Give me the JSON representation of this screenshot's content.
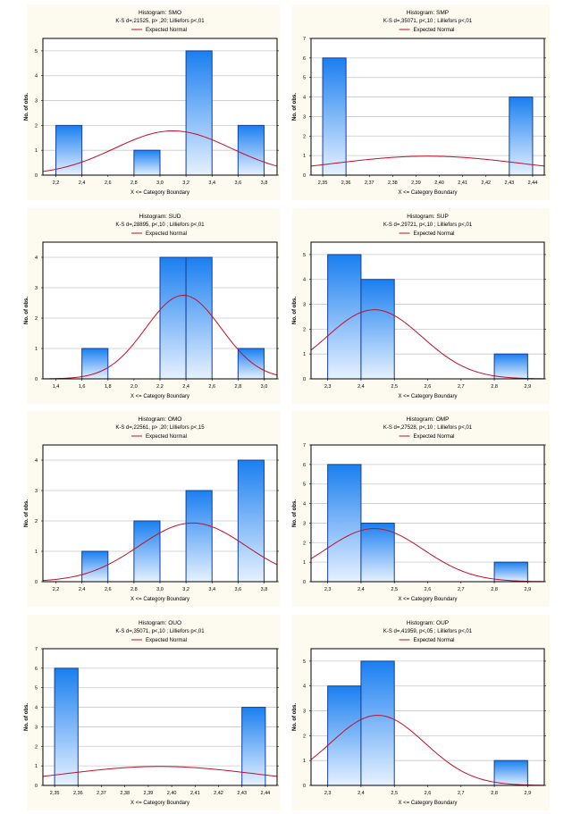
{
  "colors": {
    "panel": "#fdfaf0",
    "bar_top": "#1a7ff0",
    "bar_bottom": "#e6f1ff",
    "bar_stroke": "#123f9e",
    "curve": "#c0102a",
    "grid": "#c8c8c8"
  },
  "chart_data": [
    {
      "type": "bar",
      "title": "Histogram: SMO",
      "subtitle": "K-S d=,21525, p> ,20; Lilliefors p<,01",
      "legend": "Expected Normal",
      "xlabel": "X <= Category Boundary",
      "ylabel": "No. of obs.",
      "xlim": [
        2.1,
        3.9
      ],
      "ylim": [
        0,
        5.5
      ],
      "xticks": [
        2.2,
        2.4,
        2.6,
        2.8,
        3.0,
        3.2,
        3.4,
        3.6,
        3.8
      ],
      "xtick_labels": [
        "2,2",
        "2,4",
        "2,6",
        "2,8",
        "3,0",
        "3,2",
        "3,4",
        "3,6",
        "3,8"
      ],
      "yticks": [
        "0",
        "1",
        "2",
        "3",
        "4",
        "5"
      ],
      "bins": [
        {
          "from": 2.2,
          "to": 2.4,
          "count": 2
        },
        {
          "from": 2.8,
          "to": 3.0,
          "count": 1
        },
        {
          "from": 3.2,
          "to": 3.4,
          "count": 5
        },
        {
          "from": 3.6,
          "to": 3.8,
          "count": 2
        }
      ],
      "normal": {
        "mean": 3.1,
        "sd": 0.448,
        "n": 10,
        "bin_width": 0.2
      }
    },
    {
      "type": "bar",
      "title": "Histogram: SMP",
      "subtitle": "K-S d=,35071, p<,10 ; Lilliefors p<,01",
      "legend": "Expected Normal",
      "xlabel": "X <= Category Boundary",
      "ylabel": "No. of obs.",
      "xlim": [
        2.345,
        2.445
      ],
      "ylim": [
        0,
        7
      ],
      "xticks": [
        2.35,
        2.36,
        2.37,
        2.38,
        2.39,
        2.4,
        2.41,
        2.42,
        2.43,
        2.44
      ],
      "xtick_labels": [
        "2,35",
        "2,36",
        "2,37",
        "2,38",
        "2,39",
        "2,40",
        "2,41",
        "2,42",
        "2,43",
        "2,44"
      ],
      "yticks": [
        "0",
        "1",
        "2",
        "3",
        "4",
        "5",
        "6",
        "7"
      ],
      "bins": [
        {
          "from": 2.35,
          "to": 2.36,
          "count": 6
        },
        {
          "from": 2.43,
          "to": 2.44,
          "count": 4
        }
      ],
      "normal": {
        "mean": 2.395,
        "sd": 0.0411,
        "n": 10,
        "bin_width": 0.01
      }
    },
    {
      "type": "bar",
      "title": "Histogram: SUD",
      "subtitle": "K-S d=,28895, p<,10 ; Lilliefors p<,01",
      "legend": "Expected Normal",
      "xlabel": "X <= Category Boundary",
      "ylabel": "No. of obs.",
      "xlim": [
        1.3,
        3.1
      ],
      "ylim": [
        0,
        4.5
      ],
      "xticks": [
        1.4,
        1.6,
        1.8,
        2.0,
        2.2,
        2.4,
        2.6,
        2.8,
        3.0
      ],
      "xtick_labels": [
        "1,4",
        "1,6",
        "1,8",
        "2,0",
        "2,2",
        "2,4",
        "2,6",
        "2,8",
        "3,0"
      ],
      "yticks": [
        "0",
        "1",
        "2",
        "3",
        "4"
      ],
      "bins": [
        {
          "from": 1.6,
          "to": 1.8,
          "count": 1
        },
        {
          "from": 2.2,
          "to": 2.4,
          "count": 4
        },
        {
          "from": 2.4,
          "to": 2.6,
          "count": 4
        },
        {
          "from": 2.8,
          "to": 3.0,
          "count": 1
        }
      ],
      "normal": {
        "mean": 2.38,
        "sd": 0.29,
        "n": 10,
        "bin_width": 0.2
      }
    },
    {
      "type": "bar",
      "title": "Histogram: SUP",
      "subtitle": "K-S d=,29721, p<,10 ; Lilliefors p<,01",
      "legend": "Expected Normal",
      "xlabel": "X <= Category Boundary",
      "ylabel": "No. of obs.",
      "xlim": [
        2.25,
        2.95
      ],
      "ylim": [
        0,
        5.5
      ],
      "xticks": [
        2.3,
        2.4,
        2.5,
        2.6,
        2.7,
        2.8,
        2.9
      ],
      "xtick_labels": [
        "2,3",
        "2,4",
        "2,5",
        "2,6",
        "2,7",
        "2,8",
        "2,9"
      ],
      "yticks": [
        "0",
        "1",
        "2",
        "3",
        "4",
        "5"
      ],
      "bins": [
        {
          "from": 2.3,
          "to": 2.4,
          "count": 5
        },
        {
          "from": 2.4,
          "to": 2.5,
          "count": 4
        },
        {
          "from": 2.8,
          "to": 2.9,
          "count": 1
        }
      ],
      "normal": {
        "mean": 2.44,
        "sd": 0.1435,
        "n": 10,
        "bin_width": 0.1
      }
    },
    {
      "type": "bar",
      "title": "Histogram: OMO",
      "subtitle": "K-S d=,22561, p> ,20; Lilliefors p<,15",
      "legend": "Expected Normal",
      "xlabel": "X <= Category Boundary",
      "ylabel": "No. of obs.",
      "xlim": [
        2.1,
        3.9
      ],
      "ylim": [
        0,
        4.5
      ],
      "xticks": [
        2.2,
        2.4,
        2.6,
        2.8,
        3.0,
        3.2,
        3.4,
        3.6,
        3.8
      ],
      "xtick_labels": [
        "2,2",
        "2,4",
        "2,6",
        "2,8",
        "3,0",
        "3,2",
        "3,4",
        "3,6",
        "3,8"
      ],
      "yticks": [
        "0",
        "1",
        "2",
        "3",
        "4"
      ],
      "bins": [
        {
          "from": 2.4,
          "to": 2.6,
          "count": 1
        },
        {
          "from": 2.8,
          "to": 3.0,
          "count": 2
        },
        {
          "from": 3.2,
          "to": 3.4,
          "count": 3
        },
        {
          "from": 3.6,
          "to": 3.8,
          "count": 4
        }
      ],
      "normal": {
        "mean": 3.25,
        "sd": 0.413,
        "n": 10,
        "bin_width": 0.2
      }
    },
    {
      "type": "bar",
      "title": "Histogram: OMP",
      "subtitle": "K-S d=,27528, p<,10 ; Lilliefors p<,01",
      "legend": "Expected Normal",
      "xlabel": "X <= Category Boundary",
      "ylabel": "No. of obs.",
      "xlim": [
        2.25,
        2.95
      ],
      "ylim": [
        0,
        7
      ],
      "xticks": [
        2.3,
        2.4,
        2.5,
        2.6,
        2.7,
        2.8,
        2.9
      ],
      "xtick_labels": [
        "2,3",
        "2,4",
        "2,5",
        "2,6",
        "2,7",
        "2,8",
        "2,9"
      ],
      "yticks": [
        "0",
        "1",
        "2",
        "3",
        "4",
        "5",
        "6",
        "7"
      ],
      "bins": [
        {
          "from": 2.3,
          "to": 2.4,
          "count": 6
        },
        {
          "from": 2.4,
          "to": 2.5,
          "count": 3
        },
        {
          "from": 2.8,
          "to": 2.9,
          "count": 1
        }
      ],
      "normal": {
        "mean": 2.44,
        "sd": 0.1467,
        "n": 10,
        "bin_width": 0.1
      }
    },
    {
      "type": "bar",
      "title": "Histogram: OUO",
      "subtitle": "K-S d=,35071, p<,10 ; Lilliefors p<,01",
      "legend": "Expected Normal",
      "xlabel": "X <= Category Boundary",
      "ylabel": "No. of obs.",
      "xlim": [
        2.345,
        2.445
      ],
      "ylim": [
        0,
        7
      ],
      "xticks": [
        2.35,
        2.36,
        2.37,
        2.38,
        2.39,
        2.4,
        2.41,
        2.42,
        2.43,
        2.44
      ],
      "xtick_labels": [
        "2,35",
        "2,36",
        "2,37",
        "2,38",
        "2,39",
        "2,40",
        "2,41",
        "2,42",
        "2,43",
        "2,44"
      ],
      "yticks": [
        "0",
        "1",
        "2",
        "3",
        "4",
        "5",
        "6",
        "7"
      ],
      "bins": [
        {
          "from": 2.35,
          "to": 2.36,
          "count": 6
        },
        {
          "from": 2.43,
          "to": 2.44,
          "count": 4
        }
      ],
      "normal": {
        "mean": 2.395,
        "sd": 0.0411,
        "n": 10,
        "bin_width": 0.01
      }
    },
    {
      "type": "bar",
      "title": "Histogram: OUP",
      "subtitle": "K-S d=,41959, p<,05 ; Lilliefors p<,01",
      "legend": "Expected Normal",
      "xlabel": "X <= Category Boundary",
      "ylabel": "No. of obs.",
      "xlim": [
        2.25,
        2.95
      ],
      "ylim": [
        0,
        5.5
      ],
      "xticks": [
        2.3,
        2.4,
        2.5,
        2.6,
        2.7,
        2.8,
        2.9
      ],
      "xtick_labels": [
        "2,3",
        "2,4",
        "2,5",
        "2,6",
        "2,7",
        "2,8",
        "2,9"
      ],
      "yticks": [
        "0",
        "1",
        "2",
        "3",
        "4",
        "5"
      ],
      "bins": [
        {
          "from": 2.3,
          "to": 2.4,
          "count": 4
        },
        {
          "from": 2.4,
          "to": 2.5,
          "count": 5
        },
        {
          "from": 2.8,
          "to": 2.9,
          "count": 1
        }
      ],
      "normal": {
        "mean": 2.45,
        "sd": 0.1415,
        "n": 10,
        "bin_width": 0.1
      }
    }
  ]
}
